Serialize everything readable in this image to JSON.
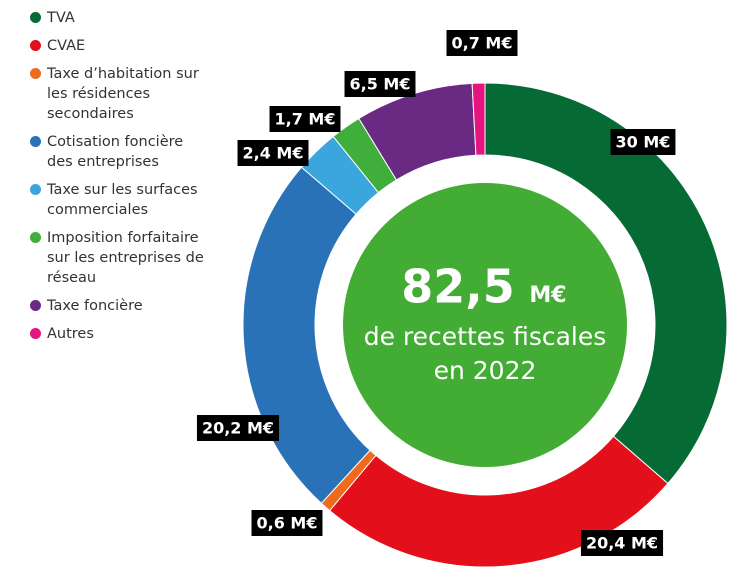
{
  "chart_data": {
    "type": "donut",
    "categories": [
      "TVA",
      "CVAE",
      "Taxe d’habitation sur les résidences secondaires",
      "Cotisation foncière des entreprises",
      "Taxe sur les surfaces commerciales",
      "Imposition forfaitaire sur les entreprises de réseau",
      "Taxe foncière",
      "Autres"
    ],
    "values": [
      30,
      20.4,
      0.6,
      20.2,
      2.4,
      1.7,
      6.5,
      0.7
    ],
    "value_labels": [
      "30 M€",
      "20,4 M€",
      "0,6 M€",
      "20,2 M€",
      "2,4 M€",
      "1,7 M€",
      "6,5 M€",
      "0,7 M€"
    ],
    "colors": [
      "#066a35",
      "#e3101b",
      "#ef6a1a",
      "#2a72b8",
      "#3aa6dd",
      "#3fae3a",
      "#6a2a84",
      "#e5147f"
    ],
    "center": {
      "value": "82,5",
      "unit": "M€",
      "line1": "de recettes fiscales",
      "line2": "en 2022",
      "color": "#43ac34"
    }
  }
}
